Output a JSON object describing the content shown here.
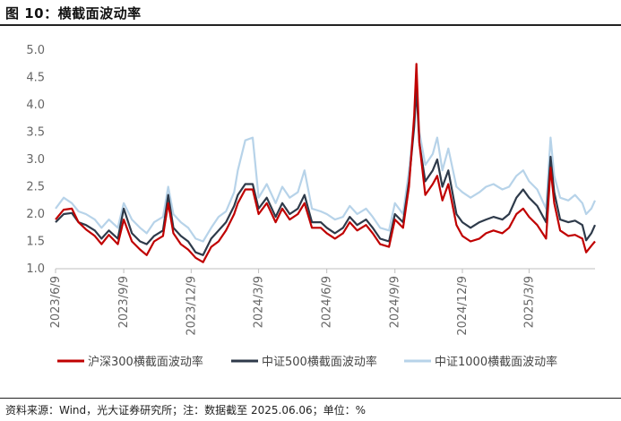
{
  "header": {
    "title": "图 10：横截面波动率"
  },
  "footer": {
    "source": "资料来源：Wind，光大证券研究所；注：数据截至 2025.06.06；单位：%"
  },
  "chart_data": {
    "type": "line",
    "title": "",
    "xlabel": "",
    "ylabel": "",
    "ylim": [
      1.0,
      5.0
    ],
    "yticks": [
      "5.0",
      "4.5",
      "4.0",
      "3.5",
      "3.0",
      "2.5",
      "2.0",
      "1.5",
      "1.0"
    ],
    "xticks": [
      "2023/6/9",
      "2023/9/9",
      "2023/12/9",
      "2024/3/9",
      "2024/6/9",
      "2024/9/9",
      "2024/12/9",
      "2025/3/9"
    ],
    "xrange": [
      "2023/6/9",
      "2025/6/6"
    ],
    "grid": false,
    "legend_position": "bottom",
    "series": [
      {
        "name": "沪深300横截面波动率",
        "color": "#c00000",
        "points": [
          [
            "2023/6/9",
            1.9
          ],
          [
            "2023/6/20",
            2.08
          ],
          [
            "2023/7/1",
            2.1
          ],
          [
            "2023/7/10",
            1.85
          ],
          [
            "2023/7/20",
            1.72
          ],
          [
            "2023/8/1",
            1.6
          ],
          [
            "2023/8/10",
            1.45
          ],
          [
            "2023/8/20",
            1.62
          ],
          [
            "2023/9/1",
            1.45
          ],
          [
            "2023/9/9",
            1.9
          ],
          [
            "2023/9/20",
            1.5
          ],
          [
            "2023/10/1",
            1.35
          ],
          [
            "2023/10/10",
            1.25
          ],
          [
            "2023/10/20",
            1.5
          ],
          [
            "2023/11/1",
            1.6
          ],
          [
            "2023/11/8",
            2.2
          ],
          [
            "2023/11/15",
            1.65
          ],
          [
            "2023/11/25",
            1.45
          ],
          [
            "2023/12/5",
            1.35
          ],
          [
            "2023/12/15",
            1.2
          ],
          [
            "2023/12/25",
            1.12
          ],
          [
            "2024/1/5",
            1.4
          ],
          [
            "2024/1/15",
            1.5
          ],
          [
            "2024/1/25",
            1.7
          ],
          [
            "2024/2/5",
            2.0
          ],
          [
            "2024/2/10",
            2.2
          ],
          [
            "2024/2/20",
            2.45
          ],
          [
            "2024/3/1",
            2.45
          ],
          [
            "2024/3/9",
            2.0
          ],
          [
            "2024/3/20",
            2.2
          ],
          [
            "2024/4/1",
            1.85
          ],
          [
            "2024/4/10",
            2.1
          ],
          [
            "2024/4/20",
            1.9
          ],
          [
            "2024/5/1",
            2.0
          ],
          [
            "2024/5/10",
            2.2
          ],
          [
            "2024/5/20",
            1.75
          ],
          [
            "2024/6/1",
            1.75
          ],
          [
            "2024/6/9",
            1.65
          ],
          [
            "2024/6/20",
            1.55
          ],
          [
            "2024/7/1",
            1.65
          ],
          [
            "2024/7/10",
            1.85
          ],
          [
            "2024/7/20",
            1.7
          ],
          [
            "2024/8/1",
            1.8
          ],
          [
            "2024/8/10",
            1.65
          ],
          [
            "2024/8/20",
            1.45
          ],
          [
            "2024/9/1",
            1.4
          ],
          [
            "2024/9/9",
            1.9
          ],
          [
            "2024/9/20",
            1.75
          ],
          [
            "2024/9/28",
            2.5
          ],
          [
            "2024/10/5",
            3.8
          ],
          [
            "2024/10/8",
            4.75
          ],
          [
            "2024/10/12",
            3.3
          ],
          [
            "2024/10/20",
            2.35
          ],
          [
            "2024/10/30",
            2.55
          ],
          [
            "2024/11/5",
            2.7
          ],
          [
            "2024/11/12",
            2.25
          ],
          [
            "2024/11/20",
            2.55
          ],
          [
            "2024/12/1",
            1.8
          ],
          [
            "2024/12/9",
            1.6
          ],
          [
            "2024/12/20",
            1.5
          ],
          [
            "2025/1/1",
            1.55
          ],
          [
            "2025/1/10",
            1.65
          ],
          [
            "2025/1/20",
            1.7
          ],
          [
            "2025/2/1",
            1.65
          ],
          [
            "2025/2/10",
            1.75
          ],
          [
            "2025/2/20",
            2.0
          ],
          [
            "2025/3/1",
            2.1
          ],
          [
            "2025/3/9",
            1.95
          ],
          [
            "2025/3/20",
            1.8
          ],
          [
            "2025/4/1",
            1.55
          ],
          [
            "2025/4/7",
            2.85
          ],
          [
            "2025/4/12",
            2.2
          ],
          [
            "2025/4/20",
            1.7
          ],
          [
            "2025/5/1",
            1.6
          ],
          [
            "2025/5/10",
            1.62
          ],
          [
            "2025/5/20",
            1.55
          ],
          [
            "2025/5/25",
            1.3
          ],
          [
            "2025/6/1",
            1.42
          ],
          [
            "2025/6/6",
            1.5
          ]
        ]
      },
      {
        "name": "中证500横截面波动率",
        "color": "#2e3a4a",
        "points": [
          [
            "2023/6/9",
            1.85
          ],
          [
            "2023/6/20",
            2.0
          ],
          [
            "2023/7/1",
            2.02
          ],
          [
            "2023/7/10",
            1.85
          ],
          [
            "2023/7/20",
            1.8
          ],
          [
            "2023/8/1",
            1.7
          ],
          [
            "2023/8/10",
            1.55
          ],
          [
            "2023/8/20",
            1.7
          ],
          [
            "2023/9/1",
            1.55
          ],
          [
            "2023/9/9",
            2.1
          ],
          [
            "2023/9/20",
            1.65
          ],
          [
            "2023/10/1",
            1.5
          ],
          [
            "2023/10/10",
            1.45
          ],
          [
            "2023/10/20",
            1.6
          ],
          [
            "2023/11/1",
            1.7
          ],
          [
            "2023/11/8",
            2.35
          ],
          [
            "2023/11/15",
            1.75
          ],
          [
            "2023/11/25",
            1.6
          ],
          [
            "2023/12/5",
            1.5
          ],
          [
            "2023/12/15",
            1.3
          ],
          [
            "2023/12/25",
            1.25
          ],
          [
            "2024/1/5",
            1.55
          ],
          [
            "2024/1/15",
            1.7
          ],
          [
            "2024/1/25",
            1.85
          ],
          [
            "2024/2/5",
            2.15
          ],
          [
            "2024/2/10",
            2.35
          ],
          [
            "2024/2/20",
            2.55
          ],
          [
            "2024/3/1",
            2.55
          ],
          [
            "2024/3/9",
            2.1
          ],
          [
            "2024/3/20",
            2.3
          ],
          [
            "2024/4/1",
            1.95
          ],
          [
            "2024/4/10",
            2.2
          ],
          [
            "2024/4/20",
            2.0
          ],
          [
            "2024/5/1",
            2.1
          ],
          [
            "2024/5/10",
            2.35
          ],
          [
            "2024/5/20",
            1.85
          ],
          [
            "2024/6/1",
            1.85
          ],
          [
            "2024/6/9",
            1.75
          ],
          [
            "2024/6/20",
            1.65
          ],
          [
            "2024/7/1",
            1.75
          ],
          [
            "2024/7/10",
            1.95
          ],
          [
            "2024/7/20",
            1.8
          ],
          [
            "2024/8/1",
            1.9
          ],
          [
            "2024/8/10",
            1.75
          ],
          [
            "2024/8/20",
            1.55
          ],
          [
            "2024/9/1",
            1.5
          ],
          [
            "2024/9/9",
            2.0
          ],
          [
            "2024/9/20",
            1.85
          ],
          [
            "2024/9/28",
            2.6
          ],
          [
            "2024/10/5",
            3.6
          ],
          [
            "2024/10/8",
            4.3
          ],
          [
            "2024/10/12",
            3.3
          ],
          [
            "2024/10/20",
            2.6
          ],
          [
            "2024/10/30",
            2.8
          ],
          [
            "2024/11/5",
            3.0
          ],
          [
            "2024/11/12",
            2.5
          ],
          [
            "2024/11/20",
            2.8
          ],
          [
            "2024/12/1",
            2.0
          ],
          [
            "2024/12/9",
            1.85
          ],
          [
            "2024/12/20",
            1.75
          ],
          [
            "2025/1/1",
            1.85
          ],
          [
            "2025/1/10",
            1.9
          ],
          [
            "2025/1/20",
            1.95
          ],
          [
            "2025/2/1",
            1.9
          ],
          [
            "2025/2/10",
            2.0
          ],
          [
            "2025/2/20",
            2.3
          ],
          [
            "2025/3/1",
            2.45
          ],
          [
            "2025/3/9",
            2.3
          ],
          [
            "2025/3/20",
            2.15
          ],
          [
            "2025/4/1",
            1.85
          ],
          [
            "2025/4/7",
            3.05
          ],
          [
            "2025/4/12",
            2.4
          ],
          [
            "2025/4/20",
            1.9
          ],
          [
            "2025/5/1",
            1.85
          ],
          [
            "2025/5/10",
            1.88
          ],
          [
            "2025/5/20",
            1.8
          ],
          [
            "2025/5/25",
            1.52
          ],
          [
            "2025/6/1",
            1.65
          ],
          [
            "2025/6/6",
            1.8
          ]
        ]
      },
      {
        "name": "中证1000横截面波动率",
        "color": "#b7d3e9",
        "points": [
          [
            "2023/6/9",
            2.1
          ],
          [
            "2023/6/20",
            2.3
          ],
          [
            "2023/7/1",
            2.2
          ],
          [
            "2023/7/10",
            2.05
          ],
          [
            "2023/7/20",
            2.0
          ],
          [
            "2023/8/1",
            1.9
          ],
          [
            "2023/8/10",
            1.75
          ],
          [
            "2023/8/20",
            1.9
          ],
          [
            "2023/9/1",
            1.75
          ],
          [
            "2023/9/9",
            2.2
          ],
          [
            "2023/9/20",
            1.9
          ],
          [
            "2023/10/1",
            1.75
          ],
          [
            "2023/10/10",
            1.65
          ],
          [
            "2023/10/20",
            1.85
          ],
          [
            "2023/11/1",
            1.95
          ],
          [
            "2023/11/8",
            2.5
          ],
          [
            "2023/11/15",
            2.0
          ],
          [
            "2023/11/25",
            1.85
          ],
          [
            "2023/12/5",
            1.75
          ],
          [
            "2023/12/15",
            1.55
          ],
          [
            "2023/12/25",
            1.5
          ],
          [
            "2024/1/5",
            1.75
          ],
          [
            "2024/1/15",
            1.95
          ],
          [
            "2024/1/25",
            2.05
          ],
          [
            "2024/2/5",
            2.4
          ],
          [
            "2024/2/10",
            2.8
          ],
          [
            "2024/2/20",
            3.35
          ],
          [
            "2024/3/1",
            3.4
          ],
          [
            "2024/3/9",
            2.3
          ],
          [
            "2024/3/20",
            2.55
          ],
          [
            "2024/4/1",
            2.2
          ],
          [
            "2024/4/10",
            2.5
          ],
          [
            "2024/4/20",
            2.3
          ],
          [
            "2024/5/1",
            2.4
          ],
          [
            "2024/5/10",
            2.8
          ],
          [
            "2024/5/20",
            2.1
          ],
          [
            "2024/6/1",
            2.05
          ],
          [
            "2024/6/9",
            2.0
          ],
          [
            "2024/6/20",
            1.9
          ],
          [
            "2024/7/1",
            1.95
          ],
          [
            "2024/7/10",
            2.15
          ],
          [
            "2024/7/20",
            2.0
          ],
          [
            "2024/8/1",
            2.1
          ],
          [
            "2024/8/10",
            1.95
          ],
          [
            "2024/8/20",
            1.75
          ],
          [
            "2024/9/1",
            1.7
          ],
          [
            "2024/9/9",
            2.2
          ],
          [
            "2024/9/20",
            2.0
          ],
          [
            "2024/9/28",
            2.8
          ],
          [
            "2024/10/5",
            3.7
          ],
          [
            "2024/10/8",
            4.25
          ],
          [
            "2024/10/12",
            3.5
          ],
          [
            "2024/10/20",
            2.9
          ],
          [
            "2024/10/30",
            3.1
          ],
          [
            "2024/11/5",
            3.4
          ],
          [
            "2024/11/12",
            2.8
          ],
          [
            "2024/11/20",
            3.2
          ],
          [
            "2024/12/1",
            2.5
          ],
          [
            "2024/12/9",
            2.4
          ],
          [
            "2024/12/20",
            2.3
          ],
          [
            "2025/1/1",
            2.4
          ],
          [
            "2025/1/10",
            2.5
          ],
          [
            "2025/1/20",
            2.55
          ],
          [
            "2025/2/1",
            2.45
          ],
          [
            "2025/2/10",
            2.5
          ],
          [
            "2025/2/20",
            2.7
          ],
          [
            "2025/3/1",
            2.8
          ],
          [
            "2025/3/9",
            2.6
          ],
          [
            "2025/3/20",
            2.45
          ],
          [
            "2025/4/1",
            2.1
          ],
          [
            "2025/4/7",
            3.4
          ],
          [
            "2025/4/12",
            2.7
          ],
          [
            "2025/4/20",
            2.3
          ],
          [
            "2025/5/1",
            2.25
          ],
          [
            "2025/5/10",
            2.35
          ],
          [
            "2025/5/20",
            2.2
          ],
          [
            "2025/5/25",
            2.0
          ],
          [
            "2025/6/1",
            2.1
          ],
          [
            "2025/6/6",
            2.25
          ]
        ]
      }
    ]
  }
}
